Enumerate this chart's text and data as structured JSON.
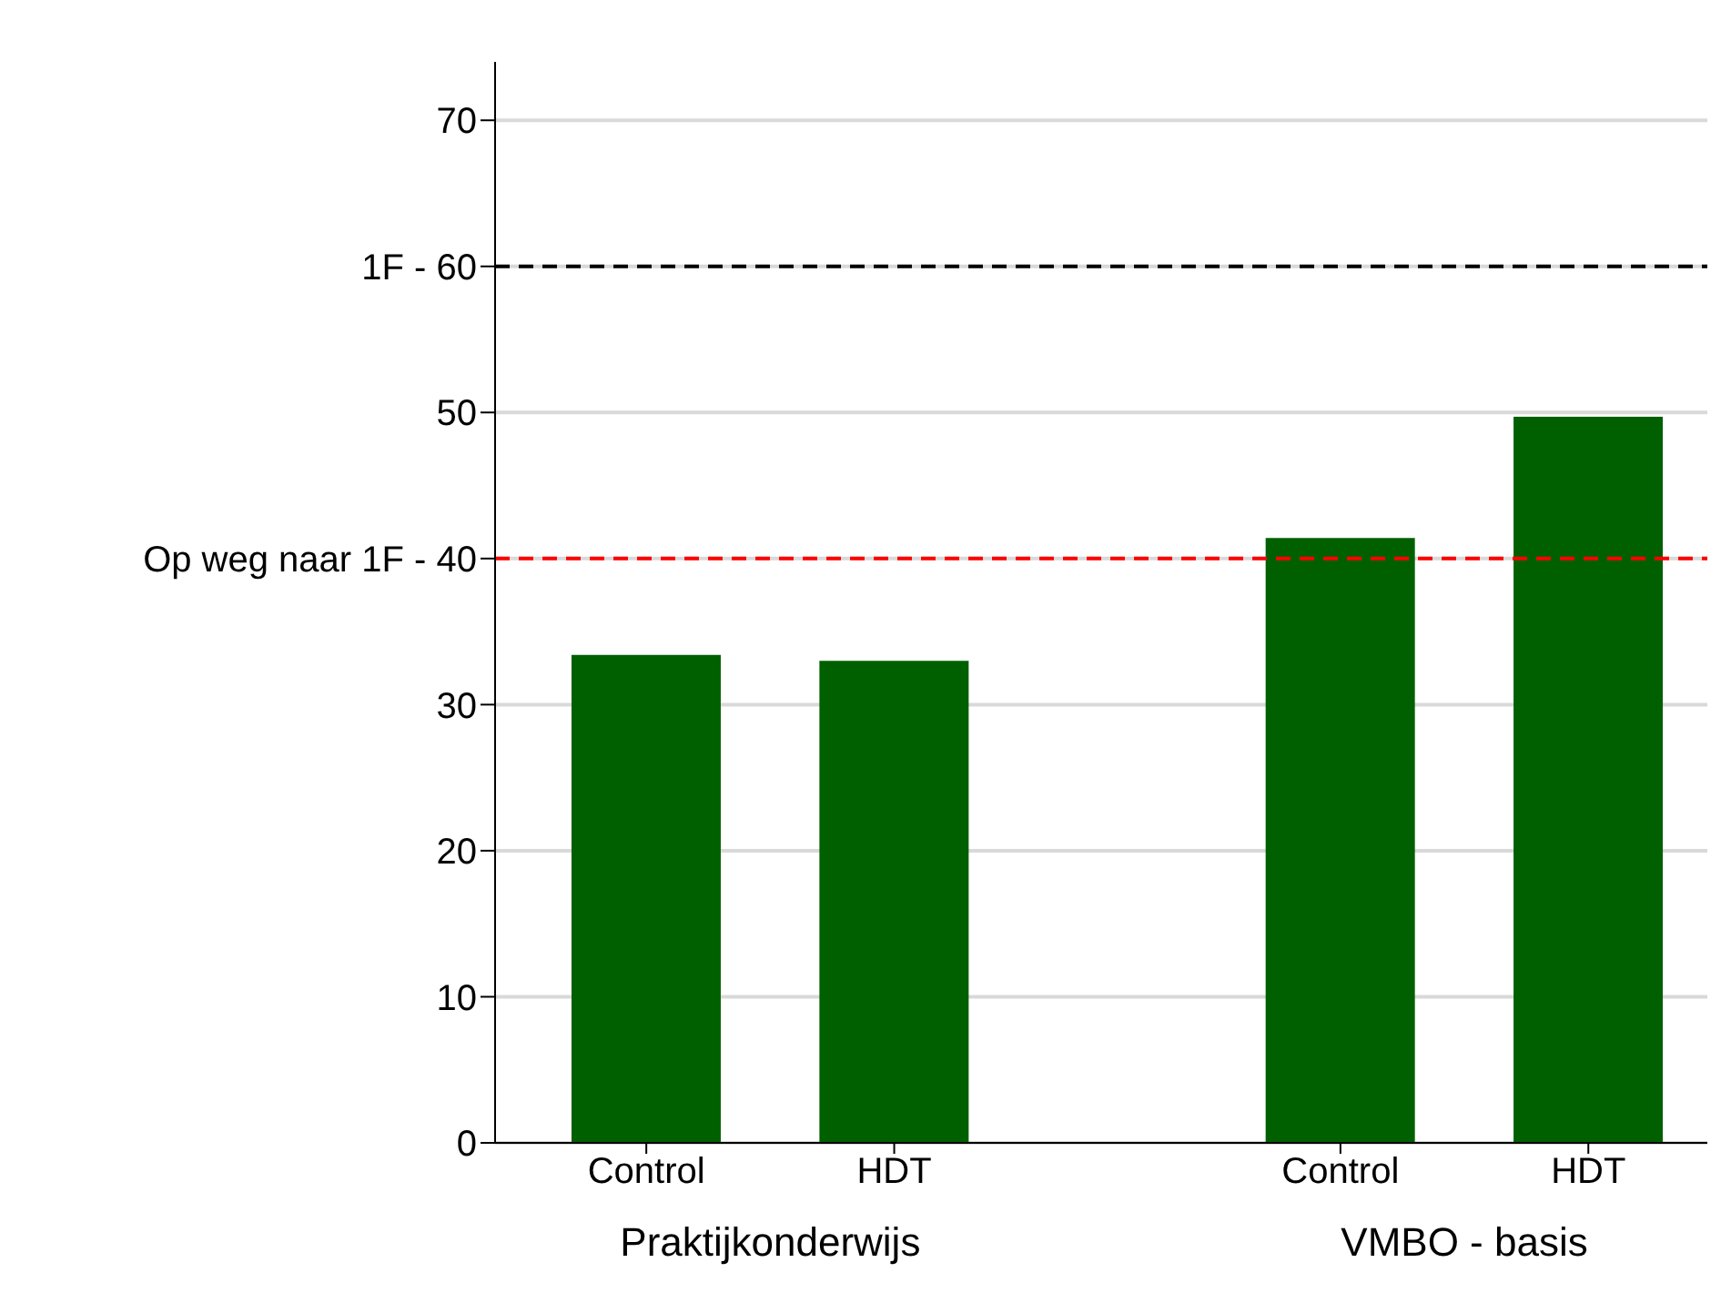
{
  "chart_data": {
    "type": "bar",
    "categories": [
      "Control",
      "HDT",
      "Control",
      "HDT"
    ],
    "values": [
      33.4,
      33.0,
      41.4,
      49.7
    ],
    "color": "#006000",
    "ylim": [
      0,
      74
    ],
    "yticks": [
      0,
      10,
      20,
      30,
      {
        "value": 40,
        "label": "Op weg naar 1F - 40"
      },
      50,
      {
        "value": 60,
        "label": "1F - 60"
      },
      70
    ],
    "grid": "y",
    "ref_lines": [
      {
        "axis": "y",
        "value": 40,
        "color": "#ff0000",
        "line_style": "dashed"
      },
      {
        "axis": "y",
        "value": 60,
        "color": "#000000",
        "line_style": "dashed"
      }
    ],
    "annotations": [
      "Praktijkonderwijs",
      "VMBO - basis"
    ]
  }
}
